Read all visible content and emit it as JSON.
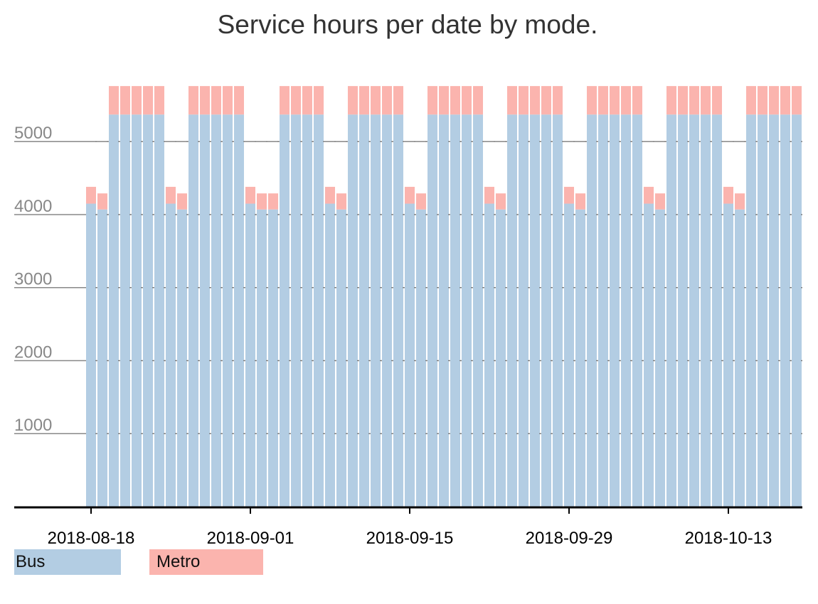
{
  "chart_data": {
    "type": "bar",
    "stacked": true,
    "title": "Service hours per date by mode.",
    "xlabel": "",
    "ylabel": "",
    "ylim": [
      0,
      5800
    ],
    "yticks": [
      1000,
      2000,
      3000,
      4000,
      5000
    ],
    "xtick_labels": [
      "2018-08-18",
      "2018-09-01",
      "2018-09-15",
      "2018-09-29",
      "2018-10-13"
    ],
    "grid": true,
    "legend_position": "bottom-left",
    "start_date": "2018-08-18",
    "categories": [
      "2018-08-18",
      "2018-08-19",
      "2018-08-20",
      "2018-08-21",
      "2018-08-22",
      "2018-08-23",
      "2018-08-24",
      "2018-08-25",
      "2018-08-26",
      "2018-08-27",
      "2018-08-28",
      "2018-08-29",
      "2018-08-30",
      "2018-08-31",
      "2018-09-01",
      "2018-09-02",
      "2018-09-03",
      "2018-09-04",
      "2018-09-05",
      "2018-09-06",
      "2018-09-07",
      "2018-09-08",
      "2018-09-09",
      "2018-09-10",
      "2018-09-11",
      "2018-09-12",
      "2018-09-13",
      "2018-09-14",
      "2018-09-15",
      "2018-09-16",
      "2018-09-17",
      "2018-09-18",
      "2018-09-19",
      "2018-09-20",
      "2018-09-21",
      "2018-09-22",
      "2018-09-23",
      "2018-09-24",
      "2018-09-25",
      "2018-09-26",
      "2018-09-27",
      "2018-09-28",
      "2018-09-29",
      "2018-09-30",
      "2018-10-01",
      "2018-10-02",
      "2018-10-03",
      "2018-10-04",
      "2018-10-05",
      "2018-10-06",
      "2018-10-07",
      "2018-10-08",
      "2018-10-09",
      "2018-10-10",
      "2018-10-11",
      "2018-10-12",
      "2018-10-13",
      "2018-10-14",
      "2018-10-15",
      "2018-10-16",
      "2018-10-17",
      "2018-10-18",
      "2018-10-19"
    ],
    "series": [
      {
        "name": "Bus",
        "color": "#b3cde3",
        "values": [
          4150,
          4070,
          5370,
          5370,
          5370,
          5370,
          5370,
          4150,
          4070,
          5370,
          5370,
          5370,
          5370,
          5370,
          4150,
          4070,
          4070,
          5370,
          5370,
          5370,
          5370,
          4150,
          4070,
          5370,
          5370,
          5370,
          5370,
          5370,
          4150,
          4070,
          5370,
          5370,
          5370,
          5370,
          5370,
          4150,
          4070,
          5370,
          5370,
          5370,
          5370,
          5370,
          4150,
          4070,
          5370,
          5370,
          5370,
          5370,
          5370,
          4150,
          4070,
          5370,
          5370,
          5370,
          5370,
          5370,
          4150,
          4070,
          5370,
          5370,
          5370,
          5370,
          5370
        ]
      },
      {
        "name": "Metro",
        "color": "#fbb4ae",
        "values": [
          230,
          220,
          390,
          390,
          390,
          390,
          390,
          230,
          220,
          390,
          390,
          390,
          390,
          390,
          230,
          220,
          220,
          390,
          390,
          390,
          390,
          230,
          220,
          390,
          390,
          390,
          390,
          390,
          230,
          220,
          390,
          390,
          390,
          390,
          390,
          230,
          220,
          390,
          390,
          390,
          390,
          390,
          230,
          220,
          390,
          390,
          390,
          390,
          390,
          230,
          220,
          390,
          390,
          390,
          390,
          390,
          230,
          220,
          390,
          390,
          390,
          390,
          390
        ]
      }
    ]
  }
}
